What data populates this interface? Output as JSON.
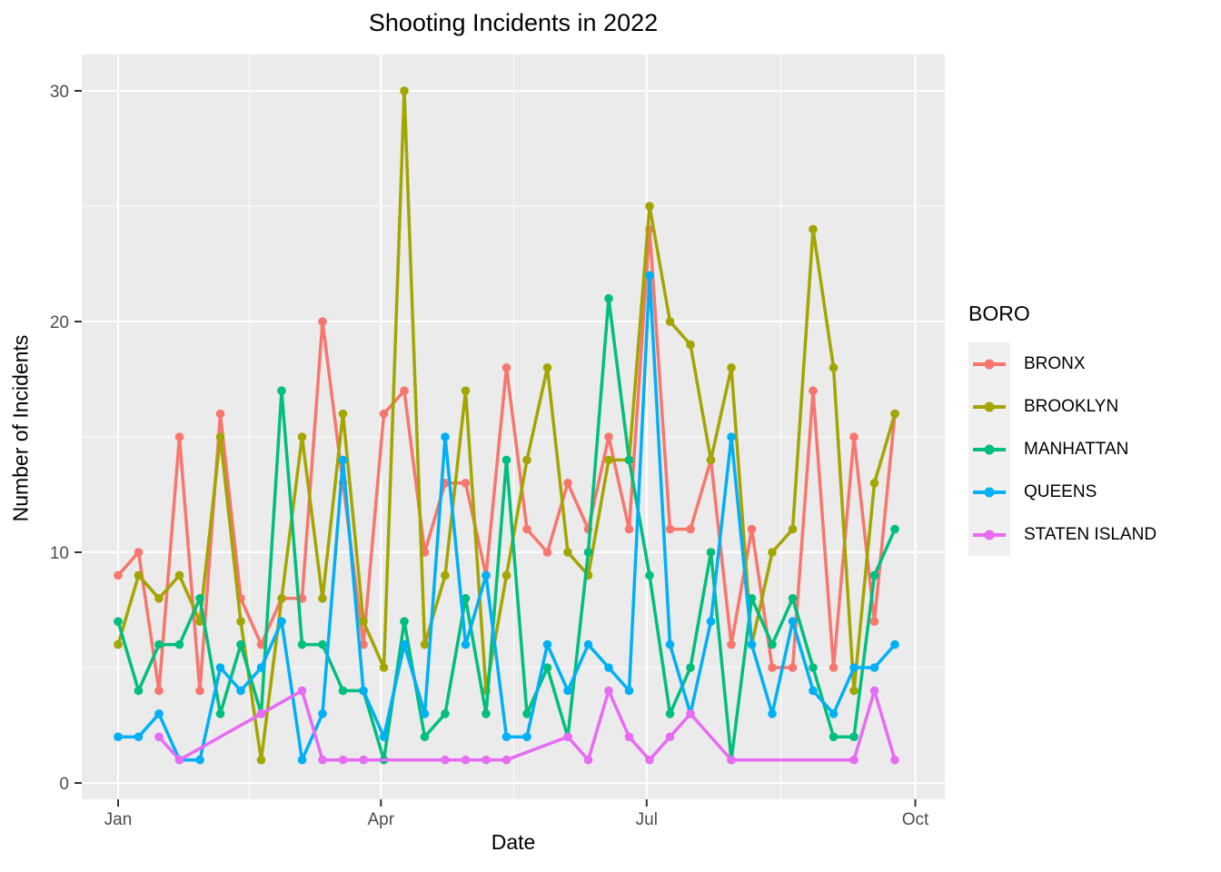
{
  "chart_data": {
    "type": "line",
    "title": "Shooting Incidents in 2022",
    "xlabel": "Date",
    "ylabel": "Number of Incidents",
    "legend_title": "BORO",
    "legend_position": "right",
    "panel_bg": "#EBEBEB",
    "grid": {
      "major_color": "#FFFFFF",
      "minor_color": "#FFFFFF",
      "on": true
    },
    "x_axis": {
      "tick_labels": [
        "Jan",
        "Apr",
        "Jul",
        "Oct"
      ],
      "tick_weeks": [
        0,
        12.857,
        25.857,
        39.0
      ],
      "minor_weeks": [
        6.429,
        19.357,
        32.429
      ],
      "domain_weeks": [
        -1.78,
        40.44
      ]
    },
    "y_axis": {
      "tick_labels": [
        "0",
        "10",
        "20",
        "30"
      ],
      "ticks": [
        0,
        10,
        20,
        30
      ],
      "minor": [
        5,
        15,
        25
      ],
      "ylim": [
        0,
        30
      ],
      "domain": [
        -0.71,
        31.57
      ]
    },
    "weeks": [
      "2022-01-01",
      "2022-01-08",
      "2022-01-15",
      "2022-01-22",
      "2022-01-29",
      "2022-02-05",
      "2022-02-12",
      "2022-02-19",
      "2022-02-26",
      "2022-03-05",
      "2022-03-12",
      "2022-03-19",
      "2022-03-26",
      "2022-04-02",
      "2022-04-09",
      "2022-04-16",
      "2022-04-23",
      "2022-04-30",
      "2022-05-07",
      "2022-05-14",
      "2022-05-21",
      "2022-05-28",
      "2022-06-04",
      "2022-06-11",
      "2022-06-18",
      "2022-06-25",
      "2022-07-02",
      "2022-07-09",
      "2022-07-16",
      "2022-07-23",
      "2022-07-30",
      "2022-08-06",
      "2022-08-13",
      "2022-08-20",
      "2022-08-27",
      "2022-09-03",
      "2022-09-10",
      "2022-09-17",
      "2022-09-24"
    ],
    "series": [
      {
        "name": "BRONX",
        "color": "#F8766D",
        "values": [
          9,
          10,
          4,
          15,
          4,
          16,
          8,
          6,
          8,
          8,
          20,
          13,
          6,
          16,
          17,
          10,
          13,
          13,
          9,
          18,
          11,
          10,
          13,
          11,
          15,
          11,
          24,
          11,
          11,
          14,
          6,
          11,
          5,
          5,
          17,
          5,
          15,
          7,
          16
        ]
      },
      {
        "name": "BROOKLYN",
        "color": "#A3A500",
        "values": [
          6,
          9,
          8,
          9,
          7,
          15,
          7,
          1,
          8,
          15,
          8,
          16,
          7,
          5,
          30,
          6,
          9,
          17,
          4,
          9,
          14,
          18,
          10,
          9,
          14,
          14,
          25,
          20,
          19,
          14,
          18,
          6,
          10,
          11,
          24,
          18,
          4,
          13,
          16
        ]
      },
      {
        "name": "MANHATTAN",
        "color": "#00BF7D",
        "values": [
          7,
          4,
          6,
          6,
          8,
          3,
          6,
          3,
          17,
          6,
          6,
          4,
          4,
          1,
          7,
          2,
          3,
          8,
          3,
          14,
          3,
          5,
          2,
          10,
          21,
          14,
          9,
          3,
          5,
          10,
          1,
          8,
          6,
          8,
          5,
          2,
          2,
          9,
          11
        ]
      },
      {
        "name": "QUEENS",
        "color": "#00B0F6",
        "values": [
          2,
          2,
          3,
          1,
          1,
          5,
          4,
          5,
          7,
          1,
          3,
          14,
          4,
          2,
          6,
          3,
          15,
          6,
          9,
          2,
          2,
          6,
          4,
          6,
          5,
          4,
          22,
          6,
          3,
          7,
          15,
          6,
          3,
          7,
          4,
          3,
          5,
          5,
          6
        ]
      },
      {
        "name": "STATEN ISLAND",
        "color": "#E76BF3",
        "values": [
          null,
          null,
          2,
          1,
          null,
          null,
          null,
          3,
          null,
          4,
          1,
          1,
          1,
          null,
          null,
          null,
          1,
          1,
          1,
          1,
          null,
          null,
          2,
          1,
          4,
          2,
          1,
          2,
          3,
          null,
          1,
          null,
          null,
          null,
          null,
          null,
          1,
          4,
          1
        ]
      }
    ]
  }
}
